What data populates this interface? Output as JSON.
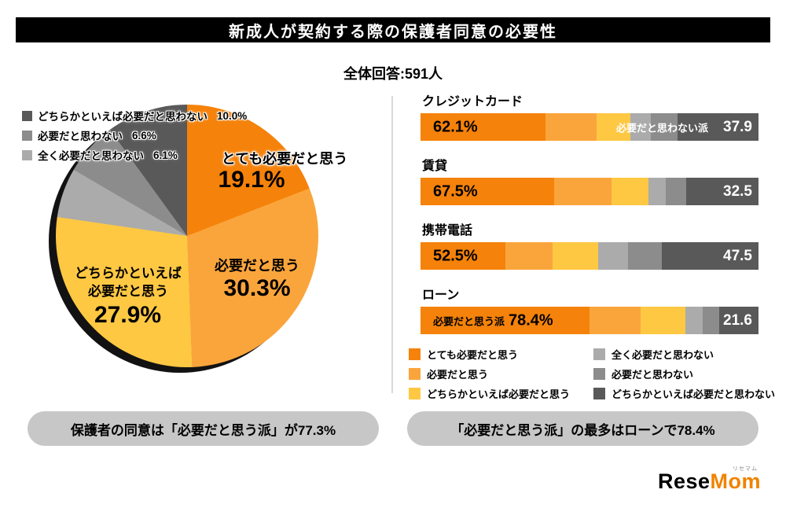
{
  "title": "新成人が契約する際の保護者同意の必要性",
  "total_label": "全体回答:591人",
  "colors": {
    "series": [
      "#F5820A",
      "#FAA53C",
      "#FFC843",
      "#ABABAB",
      "#8C8C8C",
      "#595959"
    ],
    "title_bg": "#000000",
    "pill_bg": "#C7C7C7",
    "logo_orange": "#F08300"
  },
  "pie": {
    "values": [
      19.1,
      30.3,
      27.9,
      6.1,
      6.6,
      10.0
    ],
    "segments": [
      {
        "label": "とても必要だと思う",
        "value": "19.1%"
      },
      {
        "label": "必要だと思う",
        "value": "30.3%"
      },
      {
        "label": "どちらかといえば必要だと思う",
        "value": "27.9%"
      },
      {
        "label": "全く必要だと思わない",
        "value": "6.1%"
      },
      {
        "label": "必要だと思わない",
        "value": "6.6%"
      },
      {
        "label": "どちらかといえば必要だと思わない",
        "value": "10.0%"
      }
    ]
  },
  "bars": {
    "rows": [
      {
        "category": "クレジットカード",
        "left_value": "62.1%",
        "right_note": "必要だと思わない派",
        "right_value": "37.9",
        "segments": [
          37,
          15,
          10.1,
          6,
          8,
          23.9
        ]
      },
      {
        "category": "賃貸",
        "left_value": "67.5%",
        "right_value": "32.5",
        "segments": [
          39.5,
          17,
          11,
          5,
          6,
          21.5
        ]
      },
      {
        "category": "携帯電話",
        "left_value": "52.5%",
        "right_value": "47.5",
        "segments": [
          25,
          14,
          13.5,
          9,
          10,
          28.5
        ]
      },
      {
        "category": "ローン",
        "left_note": "必要だと思う派",
        "left_value": "78.4%",
        "right_value": "21.6",
        "segments": [
          50,
          15,
          13.4,
          5,
          5,
          11.6
        ]
      }
    ]
  },
  "legend": {
    "items": [
      {
        "label": "とても必要だと思う"
      },
      {
        "label": "必要だと思う"
      },
      {
        "label": "どちらかといえば必要だと思う"
      },
      {
        "label": "全く必要だと思わない"
      },
      {
        "label": "必要だと思わない"
      },
      {
        "label": "どちらかといえば必要だと思わない"
      }
    ]
  },
  "callouts": {
    "left": "保護者の同意は「必要だと思う派」が77.3%",
    "right": "「必要だと思う派」の最多はローンで78.4%"
  },
  "logo": {
    "text_black": "Rese",
    "text_orange": "Mom",
    "ruby": "リセマム"
  },
  "chart_data": [
    {
      "type": "pie",
      "title": "新成人が契約する際の保護者同意の必要性",
      "subtitle": "全体回答:591人",
      "labels": [
        "とても必要だと思う",
        "必要だと思う",
        "どちらかといえば必要だと思う",
        "全く必要だと思わない",
        "必要だと思わない",
        "どちらかといえば必要だと思わない"
      ],
      "values": [
        19.1,
        30.3,
        27.9,
        6.1,
        6.6,
        10.0
      ],
      "colors": [
        "#F5820A",
        "#FAA53C",
        "#FFC843",
        "#ABABAB",
        "#8C8C8C",
        "#595959"
      ],
      "start": "top, clockwise",
      "annotation": "保護者の同意は「必要だと思う派」が77.3%"
    },
    {
      "type": "bar",
      "orientation": "horizontal",
      "stacked": true,
      "categories": [
        "クレジットカード",
        "賃貸",
        "携帯電話",
        "ローン"
      ],
      "series": [
        {
          "name": "必要だと思う派",
          "values": [
            62.1,
            67.5,
            52.5,
            78.4
          ]
        },
        {
          "name": "必要だと思わない派",
          "values": [
            37.9,
            32.5,
            47.5,
            21.6
          ]
        }
      ],
      "xlim": [
        0,
        100
      ],
      "legend_entries": [
        "とても必要だと思う",
        "必要だと思う",
        "どちらかといえば必要だと思う",
        "全く必要だと思わない",
        "必要だと思わない",
        "どちらかといえば必要だと思わない"
      ],
      "annotation": "「必要だと思う派」の最多はローンで78.4%",
      "note": "sub-segment splits estimated from pixel widths"
    }
  ]
}
